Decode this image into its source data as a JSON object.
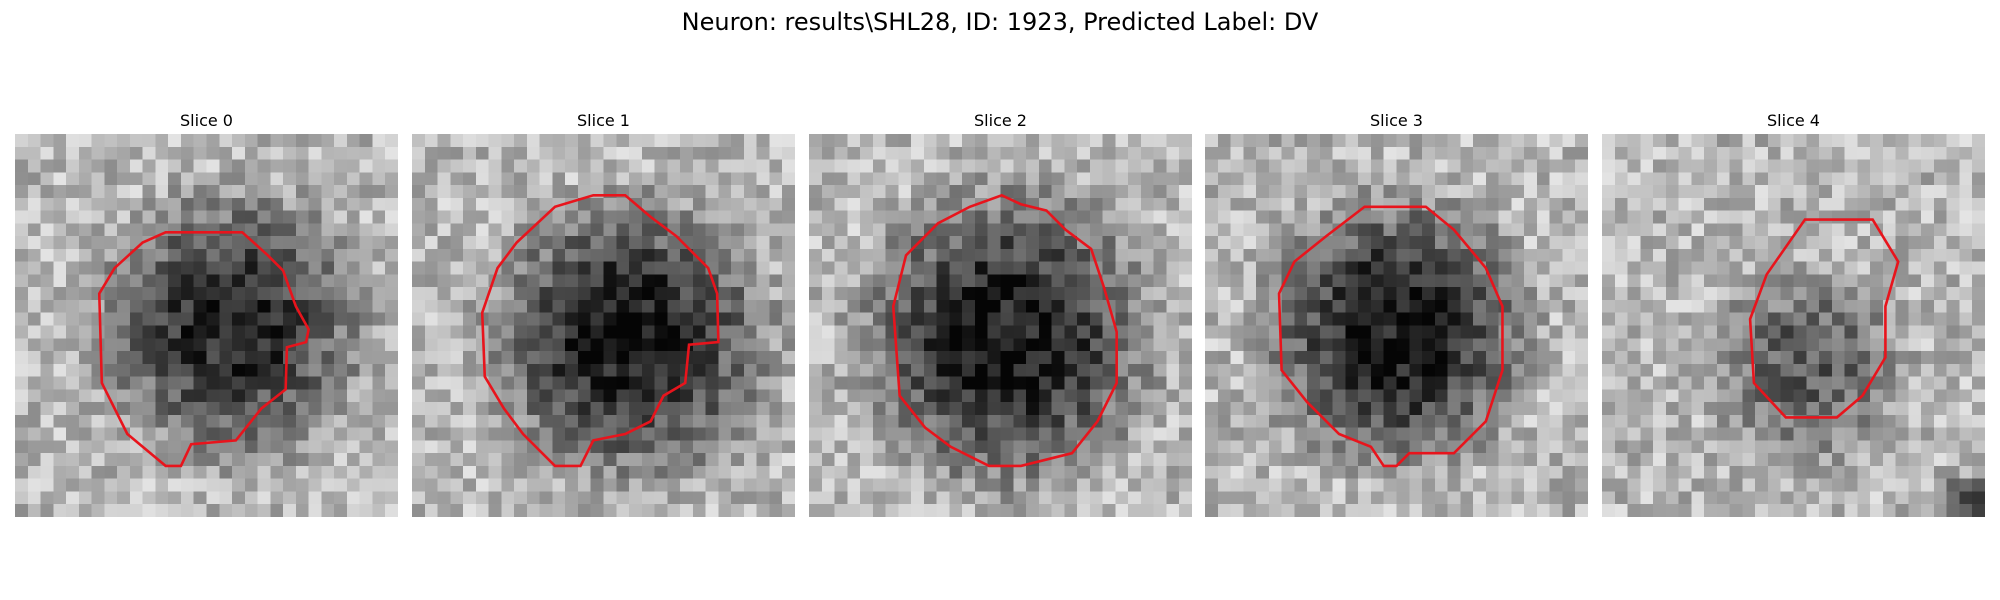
{
  "title": "Neuron: results\\SHL28, ID: 1923, Predicted Label: DV",
  "panels": [
    {
      "title": "Slice 0"
    },
    {
      "title": "Slice 1"
    },
    {
      "title": "Slice 2"
    },
    {
      "title": "Slice 3"
    },
    {
      "title": "Slice 4"
    }
  ]
}
